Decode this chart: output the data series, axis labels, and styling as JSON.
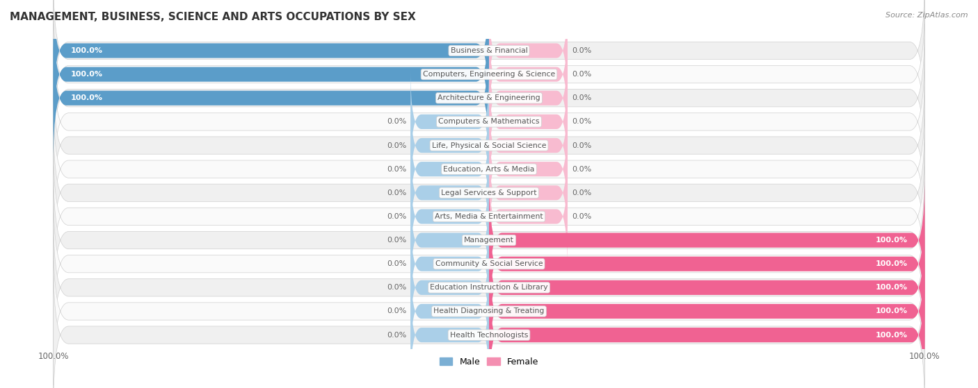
{
  "title": "MANAGEMENT, BUSINESS, SCIENCE AND ARTS OCCUPATIONS BY SEX",
  "source": "Source: ZipAtlas.com",
  "categories": [
    "Business & Financial",
    "Computers, Engineering & Science",
    "Architecture & Engineering",
    "Computers & Mathematics",
    "Life, Physical & Social Science",
    "Education, Arts & Media",
    "Legal Services & Support",
    "Arts, Media & Entertainment",
    "Management",
    "Community & Social Service",
    "Education Instruction & Library",
    "Health Diagnosing & Treating",
    "Health Technologists"
  ],
  "male": [
    100.0,
    100.0,
    100.0,
    0.0,
    0.0,
    0.0,
    0.0,
    0.0,
    0.0,
    0.0,
    0.0,
    0.0,
    0.0
  ],
  "female": [
    0.0,
    0.0,
    0.0,
    0.0,
    0.0,
    0.0,
    0.0,
    0.0,
    100.0,
    100.0,
    100.0,
    100.0,
    100.0
  ],
  "male_bar_color": "#6aaed6",
  "male_full_color": "#5b9dc9",
  "male_stub_color": "#aacfe8",
  "female_bar_color": "#f48fb1",
  "female_full_color": "#f06292",
  "female_stub_color": "#f8bbd0",
  "row_bg_light": "#f0f0f0",
  "row_bg_white": "#fafafa",
  "row_border_color": "#d0d0d0",
  "text_color": "#555555",
  "title_color": "#333333",
  "label_inside_color": "#ffffff",
  "label_outside_color": "#666666",
  "legend_male_color": "#7bafd4",
  "legend_female_color": "#f48fb1",
  "bottom_axis_label_left": "100.0%",
  "bottom_axis_label_right": "100.0%"
}
